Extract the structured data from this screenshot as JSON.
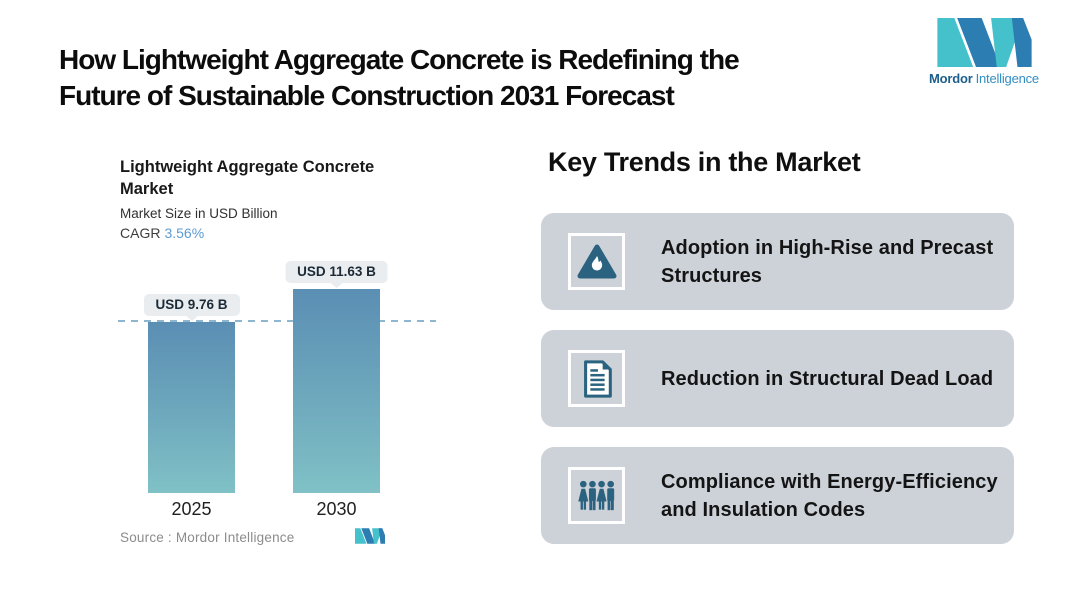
{
  "header": {
    "title_line1": "How Lightweight Aggregate Concrete is Redefining the",
    "title_line2": "Future of Sustainable Construction 2031 Forecast"
  },
  "brand": {
    "name_bold": "Mordor",
    "name_regular": "Intelligence",
    "logo_teal": "#45c1cb",
    "logo_blue": "#2b7db2"
  },
  "chart_data": {
    "type": "bar",
    "title": "Lightweight Aggregate Concrete Market",
    "subtitle": "Market Size in USD Billion",
    "cagr_label": "CAGR",
    "cagr_value": "3.56%",
    "categories": [
      "2025",
      "2030"
    ],
    "values": [
      9.76,
      11.63
    ],
    "bar_labels": [
      "USD 9.76 B",
      "USD 11.63 B"
    ],
    "reference_value": 9.76,
    "ylim": [
      0,
      14
    ],
    "grid": false,
    "legend": "none",
    "bar_gradient_top": "#5b8eb4",
    "bar_gradient_bottom": "#80c1c6",
    "dash_line_color": "#8fb6cf",
    "bubble_bg": "#e9edf0",
    "source": "Source :  Mordor Intelligence"
  },
  "trends": {
    "heading": "Key Trends in the Market",
    "card_bg": "#cdd2d9",
    "icon_color": "#2a627f",
    "items": [
      {
        "icon": "flame-triangle-icon",
        "label": "Adoption in High-Rise and Precast Structures"
      },
      {
        "icon": "document-icon",
        "label": "Reduction in Structural Dead Load"
      },
      {
        "icon": "people-group-icon",
        "label": "Compliance with Energy-Efficiency and Insulation Codes"
      }
    ]
  }
}
